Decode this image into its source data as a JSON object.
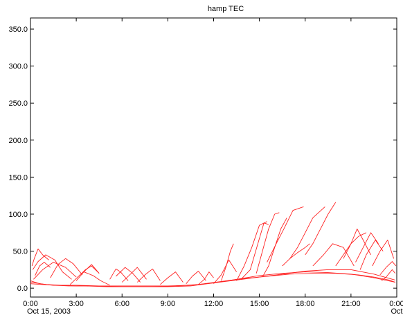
{
  "chart_data": {
    "type": "line",
    "title": "hamp TEC",
    "xlabel": "",
    "ylabel": "",
    "x_unit": "hours since 00:00 Oct 15, 2003",
    "xlim": [
      0,
      24
    ],
    "ylim": [
      -12,
      365
    ],
    "y_ticks": [
      0,
      50,
      100,
      150,
      200,
      250,
      300,
      350
    ],
    "y_tick_labels": [
      "0.0",
      "50.0",
      "100.0",
      "150.0",
      "200.0",
      "250.0",
      "300.0",
      "350.0"
    ],
    "x_ticks": [
      0,
      3,
      6,
      9,
      12,
      15,
      18,
      21,
      24
    ],
    "x_tick_labels": [
      "0:00",
      "3:00",
      "6:00",
      "9:00",
      "12:00",
      "15:00",
      "18:00",
      "21:00",
      "0:00"
    ],
    "x_tick_sublabels": [
      "Oct 15, 2003",
      "",
      "",
      "",
      "",
      "",
      "",
      "",
      "Oct"
    ],
    "grid": false,
    "line_color": "#ff2020",
    "series": [
      {
        "x": [
          0.0,
          0.6,
          1.5,
          2.5,
          3.5,
          5.0,
          6.5,
          8.0,
          9.5,
          11.0,
          12.5,
          14.0,
          15.5,
          17.0,
          18.5,
          20.0,
          21.5,
          22.5,
          23.5,
          23.9
        ],
        "y": [
          10,
          6,
          4,
          3,
          3,
          2,
          2,
          2,
          3,
          5,
          9,
          13,
          16,
          19,
          20,
          20,
          18,
          15,
          11,
          8
        ]
      },
      {
        "x": [
          0.0,
          1.0,
          2.0,
          3.0,
          4.5,
          6.0,
          7.5,
          9.0,
          10.5,
          12.0,
          13.5,
          15.0,
          16.5,
          18.0,
          19.5,
          21.0,
          22.5,
          23.9
        ],
        "y": [
          8,
          5,
          4,
          3,
          3,
          3,
          3,
          3,
          4,
          7,
          12,
          17,
          20,
          22,
          21,
          19,
          14,
          8
        ]
      },
      {
        "x": [
          0.0,
          1.5,
          3.0,
          4.5,
          6.0,
          7.5,
          9.0,
          10.5,
          12.0,
          13.5,
          15.0,
          16.5,
          18.0,
          19.5,
          21.0,
          22.5,
          23.9
        ],
        "y": [
          6,
          4,
          4,
          3,
          2,
          2,
          2,
          3,
          7,
          11,
          15,
          19,
          23,
          25,
          25,
          19,
          11
        ]
      },
      {
        "x": [
          0.1,
          0.25,
          0.5,
          0.8,
          1.2
        ],
        "y": [
          30,
          40,
          53,
          45,
          38
        ]
      },
      {
        "x": [
          0.15,
          0.5,
          1.0,
          1.6,
          2.1,
          2.7
        ],
        "y": [
          25,
          36,
          45,
          38,
          22,
          12
        ]
      },
      {
        "x": [
          0.2,
          0.8,
          1.5,
          2.3,
          3.0
        ],
        "y": [
          12,
          25,
          35,
          28,
          15
        ]
      },
      {
        "x": [
          0.3,
          0.6,
          0.9,
          1.3
        ],
        "y": [
          17,
          30,
          35,
          28
        ]
      },
      {
        "x": [
          1.3,
          1.8,
          2.3,
          2.8,
          3.4
        ],
        "y": [
          14,
          32,
          40,
          33,
          18
        ]
      },
      {
        "x": [
          2.6,
          3.1,
          3.6,
          4.0,
          4.5
        ],
        "y": [
          5,
          15,
          25,
          30,
          20
        ]
      },
      {
        "x": [
          3.0,
          3.5,
          4.0,
          4.5
        ],
        "y": [
          10,
          22,
          32,
          20
        ]
      },
      {
        "x": [
          3.5,
          4.1,
          4.6,
          5.2
        ],
        "y": [
          22,
          17,
          10,
          4
        ]
      },
      {
        "x": [
          5.2,
          5.6,
          5.9,
          6.4
        ],
        "y": [
          12,
          26,
          22,
          10
        ]
      },
      {
        "x": [
          5.6,
          6.2,
          6.7,
          7.2
        ],
        "y": [
          16,
          28,
          20,
          8
        ]
      },
      {
        "x": [
          6.0,
          6.5,
          7.0,
          7.6
        ],
        "y": [
          8,
          18,
          28,
          12
        ]
      },
      {
        "x": [
          7.0,
          7.5,
          8.0,
          8.5
        ],
        "y": [
          8,
          18,
          26,
          10
        ]
      },
      {
        "x": [
          8.5,
          9.0,
          9.5,
          10.0
        ],
        "y": [
          5,
          14,
          22,
          8
        ]
      },
      {
        "x": [
          10.2,
          10.6,
          11.0,
          11.5
        ],
        "y": [
          6,
          16,
          23,
          10
        ]
      },
      {
        "x": [
          11.0,
          11.4,
          11.7,
          12.0
        ],
        "y": [
          5,
          12,
          22,
          14
        ]
      },
      {
        "x": [
          12.0,
          12.5,
          13.0,
          13.5
        ],
        "y": [
          6,
          18,
          38,
          22
        ]
      },
      {
        "x": [
          12.5,
          12.8,
          13.1,
          13.3
        ],
        "y": [
          10,
          28,
          50,
          60
        ]
      },
      {
        "x": [
          13.5,
          14.0,
          14.5,
          15.0,
          15.5
        ],
        "y": [
          10,
          30,
          55,
          85,
          90
        ]
      },
      {
        "x": [
          13.8,
          14.4,
          14.9,
          15.3,
          15.6
        ],
        "y": [
          12,
          25,
          60,
          88,
          86
        ]
      },
      {
        "x": [
          14.8,
          15.2,
          15.6,
          16.0,
          16.3
        ],
        "y": [
          20,
          50,
          80,
          100,
          102
        ]
      },
      {
        "x": [
          15.2,
          15.6,
          16.0,
          16.4,
          16.8
        ],
        "y": [
          15,
          30,
          55,
          80,
          95
        ]
      },
      {
        "x": [
          15.5,
          16.1,
          16.6,
          17.2,
          17.9
        ],
        "y": [
          35,
          60,
          80,
          105,
          110
        ]
      },
      {
        "x": [
          16.5,
          17.0,
          17.5,
          18.0,
          18.3
        ],
        "y": [
          30,
          40,
          48,
          55,
          60
        ]
      },
      {
        "x": [
          17.0,
          17.5,
          18.0,
          18.5,
          19.3
        ],
        "y": [
          40,
          55,
          75,
          95,
          110
        ]
      },
      {
        "x": [
          18.0,
          18.5,
          19.0,
          19.5,
          20.0
        ],
        "y": [
          45,
          60,
          80,
          100,
          116
        ]
      },
      {
        "x": [
          18.5,
          19.2,
          19.8,
          20.5,
          21.2
        ],
        "y": [
          30,
          45,
          60,
          55,
          30
        ]
      },
      {
        "x": [
          20.0,
          20.5,
          21.0,
          21.5,
          22.0
        ],
        "y": [
          30,
          45,
          60,
          70,
          75
        ]
      },
      {
        "x": [
          20.5,
          21.0,
          21.4,
          21.8,
          22.3
        ],
        "y": [
          40,
          60,
          80,
          65,
          45
        ]
      },
      {
        "x": [
          21.3,
          21.8,
          22.3,
          22.8
        ],
        "y": [
          35,
          55,
          75,
          60
        ]
      },
      {
        "x": [
          21.6,
          22.0,
          22.6,
          23.1
        ],
        "y": [
          25,
          45,
          65,
          50
        ]
      },
      {
        "x": [
          22.4,
          22.9,
          23.4,
          23.8
        ],
        "y": [
          30,
          50,
          65,
          40
        ]
      },
      {
        "x": [
          22.9,
          23.3,
          23.7,
          23.95
        ],
        "y": [
          18,
          28,
          36,
          30
        ]
      },
      {
        "x": [
          23.0,
          23.3,
          23.5,
          23.7,
          23.9
        ],
        "y": [
          10,
          15,
          20,
          25,
          20
        ]
      }
    ]
  }
}
